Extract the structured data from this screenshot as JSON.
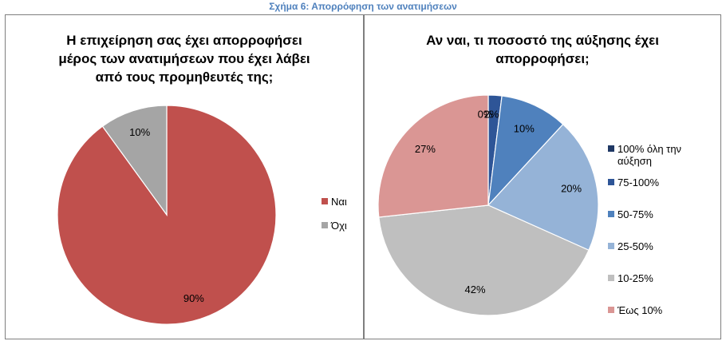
{
  "figure_caption": "Σχήμα 6: Απορρόφηση των ανατιμήσεων",
  "chart_data": [
    {
      "type": "pie",
      "title_lines": [
        "Η επιχείρηση σας έχει απορροφήσει",
        "μέρος των ανατιμήσεων που έχει λάβει",
        "από τους προμηθευτές της;"
      ],
      "categories": [
        "Ναι",
        "Όχι"
      ],
      "values": [
        90,
        10
      ],
      "labels": [
        "90%",
        "10%"
      ],
      "colors": [
        "#c0504d",
        "#a5a5a5"
      ],
      "legend_position": "right"
    },
    {
      "type": "pie",
      "title_lines": [
        "Αν ναι, τι ποσοστό της αύξησης έχει",
        "απορροφήσει;"
      ],
      "categories": [
        "100% όλη την αύξηση",
        "75-100%",
        "50-75%",
        "25-50%",
        "10-25%",
        "Έως 10%"
      ],
      "values": [
        0,
        2,
        10,
        20,
        42,
        27
      ],
      "labels": [
        "0%",
        "2%",
        "10%",
        "20%",
        "42%",
        "27%"
      ],
      "colors": [
        "#1f3864",
        "#2e5597",
        "#4f81bd",
        "#95b3d7",
        "#bfbfbf",
        "#da9694"
      ],
      "legend_position": "right"
    }
  ]
}
